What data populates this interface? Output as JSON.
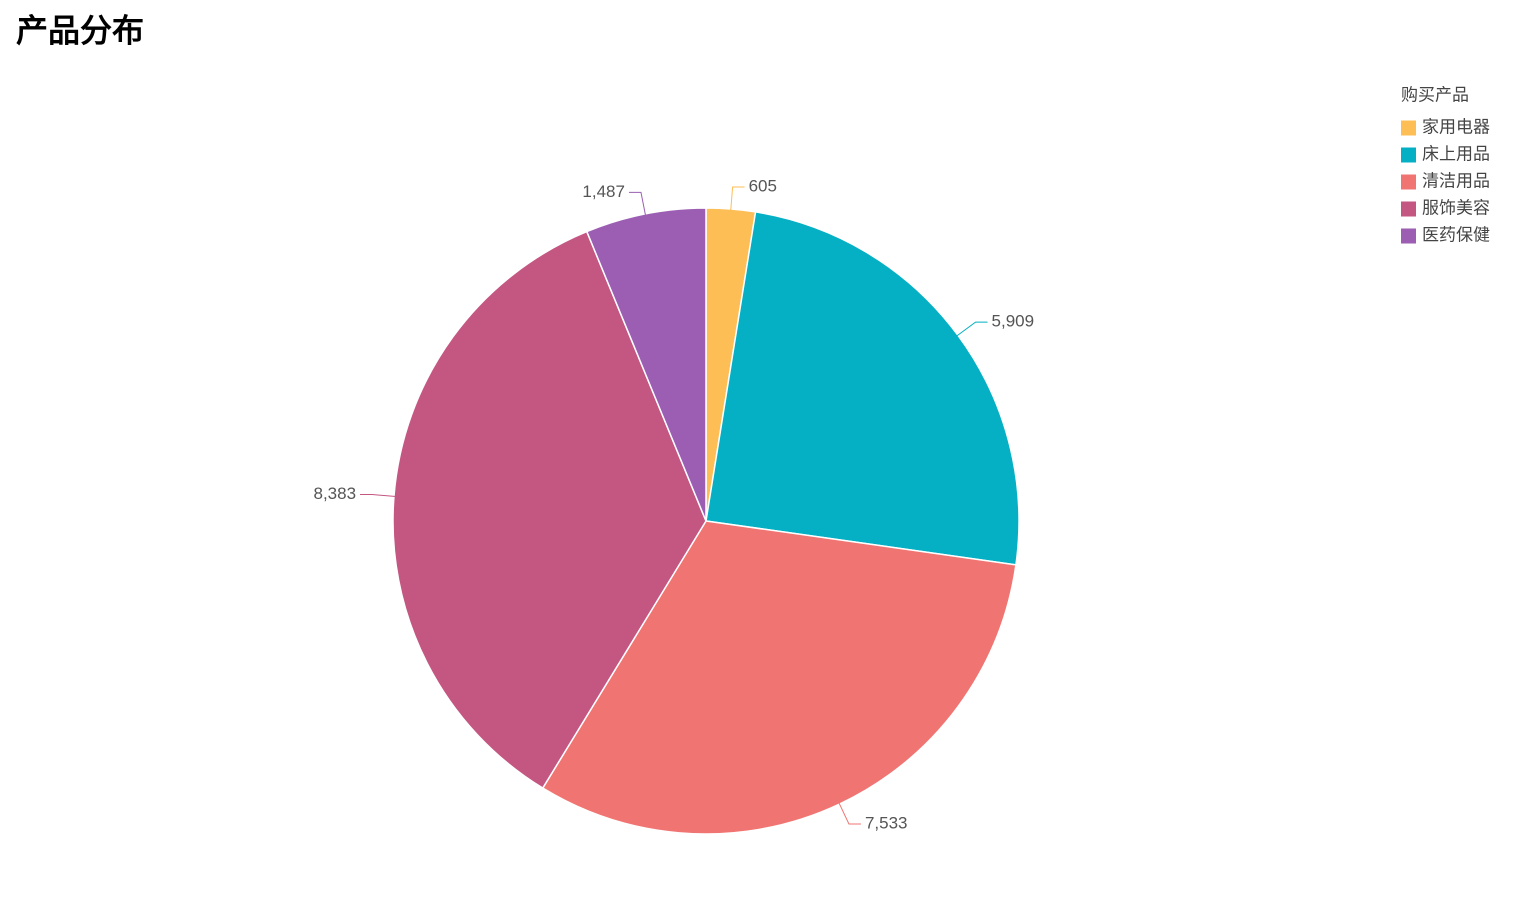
{
  "chart_data": {
    "type": "pie",
    "title": "产品分布",
    "legend_title": "购买产品",
    "categories": [
      "家用电器",
      "床上用品",
      "清洁用品",
      "服饰美容",
      "医药保健"
    ],
    "values": [
      605,
      5909,
      7533,
      8383,
      1487
    ],
    "value_labels": [
      "605",
      "5,909",
      "7,533",
      "8,383",
      "1,487"
    ],
    "colors": [
      "#fdbe55",
      "#05b0c4",
      "#f07572",
      "#c45682",
      "#9b5eb3"
    ]
  }
}
